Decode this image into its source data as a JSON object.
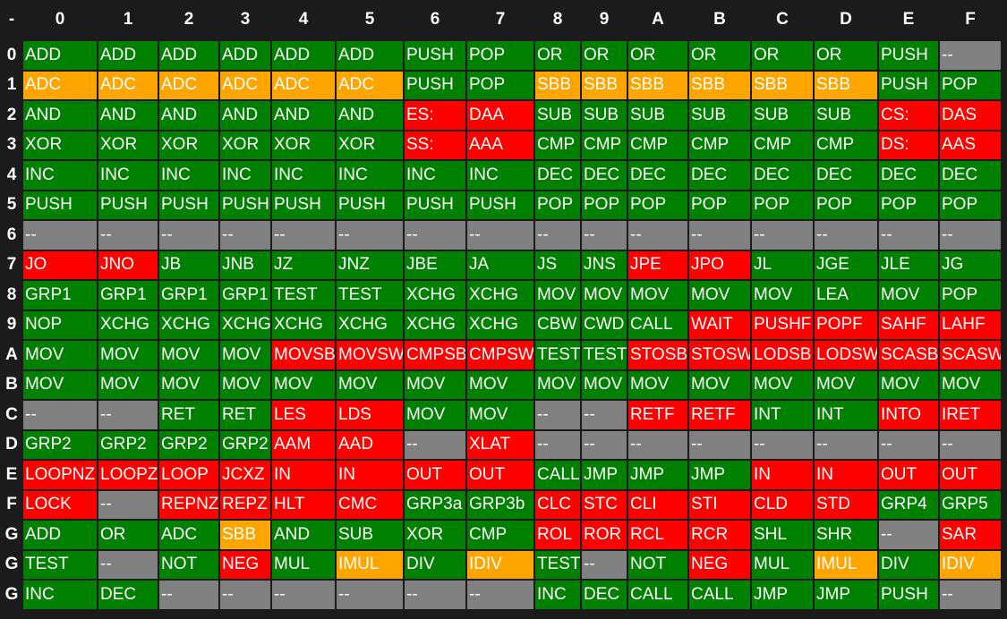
{
  "table": {
    "header": [
      "-",
      "0",
      "1",
      "2",
      "3",
      "4",
      "5",
      "6",
      "7",
      "8",
      "9",
      "A",
      "B",
      "C",
      "D",
      "E",
      "F"
    ],
    "rows": [
      {
        "label": "0",
        "cells": [
          "ADD",
          "ADD",
          "ADD",
          "ADD",
          "ADD",
          "ADD",
          "PUSH",
          "POP",
          "OR",
          "OR",
          "OR",
          "OR",
          "OR",
          "OR",
          "PUSH",
          "--"
        ],
        "colors": [
          "green",
          "green",
          "green",
          "green",
          "green",
          "green",
          "green",
          "green",
          "green",
          "green",
          "green",
          "green",
          "green",
          "green",
          "green",
          "gray"
        ]
      },
      {
        "label": "1",
        "cells": [
          "ADC",
          "ADC",
          "ADC",
          "ADC",
          "ADC",
          "ADC",
          "PUSH",
          "POP",
          "SBB",
          "SBB",
          "SBB",
          "SBB",
          "SBB",
          "SBB",
          "PUSH",
          "POP"
        ],
        "colors": [
          "orange",
          "orange",
          "orange",
          "orange",
          "orange",
          "orange",
          "green",
          "green",
          "orange",
          "orange",
          "orange",
          "orange",
          "orange",
          "orange",
          "green",
          "green"
        ]
      },
      {
        "label": "2",
        "cells": [
          "AND",
          "AND",
          "AND",
          "AND",
          "AND",
          "AND",
          "ES:",
          "DAA",
          "SUB",
          "SUB",
          "SUB",
          "SUB",
          "SUB",
          "SUB",
          "CS:",
          "DAS"
        ],
        "colors": [
          "green",
          "green",
          "green",
          "green",
          "green",
          "green",
          "red",
          "red",
          "green",
          "green",
          "green",
          "green",
          "green",
          "green",
          "red",
          "red"
        ]
      },
      {
        "label": "3",
        "cells": [
          "XOR",
          "XOR",
          "XOR",
          "XOR",
          "XOR",
          "XOR",
          "SS:",
          "AAA",
          "CMP",
          "CMP",
          "CMP",
          "CMP",
          "CMP",
          "CMP",
          "DS:",
          "AAS"
        ],
        "colors": [
          "green",
          "green",
          "green",
          "green",
          "green",
          "green",
          "red",
          "red",
          "green",
          "green",
          "green",
          "green",
          "green",
          "green",
          "red",
          "red"
        ]
      },
      {
        "label": "4",
        "cells": [
          "INC",
          "INC",
          "INC",
          "INC",
          "INC",
          "INC",
          "INC",
          "INC",
          "DEC",
          "DEC",
          "DEC",
          "DEC",
          "DEC",
          "DEC",
          "DEC",
          "DEC"
        ],
        "colors": [
          "green",
          "green",
          "green",
          "green",
          "green",
          "green",
          "green",
          "green",
          "green",
          "green",
          "green",
          "green",
          "green",
          "green",
          "green",
          "green"
        ]
      },
      {
        "label": "5",
        "cells": [
          "PUSH",
          "PUSH",
          "PUSH",
          "PUSH",
          "PUSH",
          "PUSH",
          "PUSH",
          "PUSH",
          "POP",
          "POP",
          "POP",
          "POP",
          "POP",
          "POP",
          "POP",
          "POP"
        ],
        "colors": [
          "green",
          "green",
          "green",
          "green",
          "green",
          "green",
          "green",
          "green",
          "green",
          "green",
          "green",
          "green",
          "green",
          "green",
          "green",
          "green"
        ]
      },
      {
        "label": "6",
        "cells": [
          "--",
          "--",
          "--",
          "--",
          "--",
          "--",
          "--",
          "--",
          "--",
          "--",
          "--",
          "--",
          "--",
          "--",
          "--",
          "--"
        ],
        "colors": [
          "gray",
          "gray",
          "gray",
          "gray",
          "gray",
          "gray",
          "gray",
          "gray",
          "gray",
          "gray",
          "gray",
          "gray",
          "gray",
          "gray",
          "gray",
          "gray"
        ]
      },
      {
        "label": "7",
        "cells": [
          "JO",
          "JNO",
          "JB",
          "JNB",
          "JZ",
          "JNZ",
          "JBE",
          "JA",
          "JS",
          "JNS",
          "JPE",
          "JPO",
          "JL",
          "JGE",
          "JLE",
          "JG"
        ],
        "colors": [
          "red",
          "red",
          "green",
          "green",
          "green",
          "green",
          "green",
          "green",
          "green",
          "green",
          "red",
          "red",
          "green",
          "green",
          "green",
          "green"
        ]
      },
      {
        "label": "8",
        "cells": [
          "GRP1",
          "GRP1",
          "GRP1",
          "GRP1",
          "TEST",
          "TEST",
          "XCHG",
          "XCHG",
          "MOV",
          "MOV",
          "MOV",
          "MOV",
          "MOV",
          "LEA",
          "MOV",
          "POP"
        ],
        "colors": [
          "green",
          "green",
          "green",
          "green",
          "green",
          "green",
          "green",
          "green",
          "green",
          "green",
          "green",
          "green",
          "green",
          "green",
          "green",
          "green"
        ]
      },
      {
        "label": "9",
        "cells": [
          "NOP",
          "XCHG",
          "XCHG",
          "XCHG",
          "XCHG",
          "XCHG",
          "XCHG",
          "XCHG",
          "CBW",
          "CWD",
          "CALL",
          "WAIT",
          "PUSHF",
          "POPF",
          "SAHF",
          "LAHF"
        ],
        "colors": [
          "green",
          "green",
          "green",
          "green",
          "green",
          "green",
          "green",
          "green",
          "green",
          "green",
          "green",
          "red",
          "red",
          "red",
          "red",
          "red"
        ]
      },
      {
        "label": "A",
        "cells": [
          "MOV",
          "MOV",
          "MOV",
          "MOV",
          "MOVSB",
          "MOVSW",
          "CMPSB",
          "CMPSW",
          "TEST",
          "TEST",
          "STOSB",
          "STOSW",
          "LODSB",
          "LODSW",
          "SCASB",
          "SCASW"
        ],
        "colors": [
          "green",
          "green",
          "green",
          "green",
          "red",
          "red",
          "red",
          "red",
          "green",
          "green",
          "red",
          "red",
          "red",
          "red",
          "red",
          "red"
        ]
      },
      {
        "label": "B",
        "cells": [
          "MOV",
          "MOV",
          "MOV",
          "MOV",
          "MOV",
          "MOV",
          "MOV",
          "MOV",
          "MOV",
          "MOV",
          "MOV",
          "MOV",
          "MOV",
          "MOV",
          "MOV",
          "MOV"
        ],
        "colors": [
          "green",
          "green",
          "green",
          "green",
          "green",
          "green",
          "green",
          "green",
          "green",
          "green",
          "green",
          "green",
          "green",
          "green",
          "green",
          "green"
        ]
      },
      {
        "label": "C",
        "cells": [
          "--",
          "--",
          "RET",
          "RET",
          "LES",
          "LDS",
          "MOV",
          "MOV",
          "--",
          "--",
          "RETF",
          "RETF",
          "INT",
          "INT",
          "INTO",
          "IRET"
        ],
        "colors": [
          "gray",
          "gray",
          "green",
          "green",
          "red",
          "red",
          "green",
          "green",
          "gray",
          "gray",
          "red",
          "red",
          "green",
          "green",
          "red",
          "red"
        ]
      },
      {
        "label": "D",
        "cells": [
          "GRP2",
          "GRP2",
          "GRP2",
          "GRP2",
          "AAM",
          "AAD",
          "--",
          "XLAT",
          "--",
          "--",
          "--",
          "--",
          "--",
          "--",
          "--",
          "--"
        ],
        "colors": [
          "green",
          "green",
          "green",
          "green",
          "red",
          "red",
          "gray",
          "red",
          "gray",
          "gray",
          "gray",
          "gray",
          "gray",
          "gray",
          "gray",
          "gray"
        ]
      },
      {
        "label": "E",
        "cells": [
          "LOOPNZ",
          "LOOPZ",
          "LOOP",
          "JCXZ",
          "IN",
          "IN",
          "OUT",
          "OUT",
          "CALL",
          "JMP",
          "JMP",
          "JMP",
          "IN",
          "IN",
          "OUT",
          "OUT"
        ],
        "colors": [
          "red",
          "red",
          "red",
          "red",
          "red",
          "red",
          "red",
          "red",
          "green",
          "green",
          "green",
          "green",
          "red",
          "red",
          "red",
          "red"
        ]
      },
      {
        "label": "F",
        "cells": [
          "LOCK",
          "--",
          "REPNZ",
          "REPZ",
          "HLT",
          "CMC",
          "GRP3a",
          "GRP3b",
          "CLC",
          "STC",
          "CLI",
          "STI",
          "CLD",
          "STD",
          "GRP4",
          "GRP5"
        ],
        "colors": [
          "red",
          "gray",
          "red",
          "red",
          "red",
          "red",
          "green",
          "green",
          "red",
          "red",
          "red",
          "red",
          "red",
          "red",
          "green",
          "green"
        ]
      },
      {
        "label": "G",
        "cells": [
          "ADD",
          "OR",
          "ADC",
          "SBB",
          "AND",
          "SUB",
          "XOR",
          "CMP",
          "ROL",
          "ROR",
          "RCL",
          "RCR",
          "SHL",
          "SHR",
          "--",
          "SAR"
        ],
        "colors": [
          "green",
          "green",
          "green",
          "orange",
          "green",
          "green",
          "green",
          "green",
          "red",
          "red",
          "red",
          "red",
          "green",
          "green",
          "gray",
          "red"
        ]
      },
      {
        "label": "G",
        "cells": [
          "TEST",
          "--",
          "NOT",
          "NEG",
          "MUL",
          "IMUL",
          "DIV",
          "IDIV",
          "TEST",
          "--",
          "NOT",
          "NEG",
          "MUL",
          "IMUL",
          "DIV",
          "IDIV"
        ],
        "colors": [
          "green",
          "gray",
          "green",
          "red",
          "green",
          "orange",
          "green",
          "orange",
          "green",
          "gray",
          "green",
          "red",
          "green",
          "orange",
          "green",
          "orange"
        ]
      },
      {
        "label": "G",
        "cells": [
          "INC",
          "DEC",
          "--",
          "--",
          "--",
          "--",
          "--",
          "--",
          "INC",
          "DEC",
          "CALL",
          "CALL",
          "JMP",
          "JMP",
          "PUSH",
          "--"
        ],
        "colors": [
          "green",
          "green",
          "gray",
          "gray",
          "gray",
          "gray",
          "gray",
          "gray",
          "green",
          "green",
          "green",
          "green",
          "green",
          "green",
          "green",
          "gray"
        ]
      }
    ]
  }
}
